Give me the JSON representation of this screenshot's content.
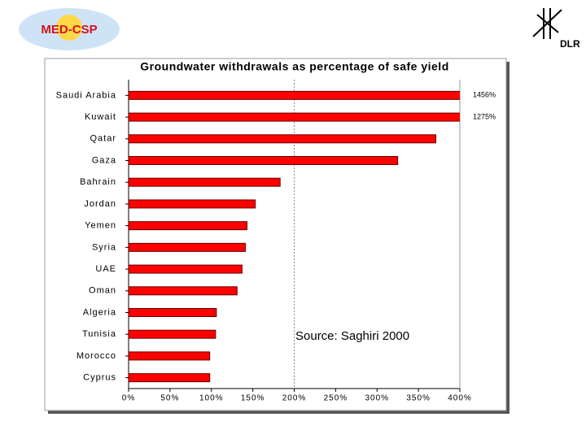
{
  "header": {
    "left_logo": "MED-CSP",
    "right_logo": "DLR"
  },
  "chart_data": {
    "type": "bar",
    "orientation": "horizontal",
    "title": "Groundwater withdrawals as percentage of safe yield",
    "categories": [
      "Saudi Arabia",
      "Kuwait",
      "Qatar",
      "Gaza",
      "Bahrain",
      "Jordan",
      "Yemen",
      "Syria",
      "UAE",
      "Oman",
      "Algeria",
      "Tunisia",
      "Morocco",
      "Cyprus"
    ],
    "values": [
      1456,
      1275,
      371,
      325,
      183,
      153,
      143,
      141,
      137,
      131,
      106,
      105,
      98,
      98
    ],
    "value_labels": [
      "1456%",
      "1275%",
      null,
      null,
      null,
      null,
      null,
      null,
      null,
      null,
      null,
      null,
      null,
      null
    ],
    "color": "#ff0000",
    "xlim": [
      0,
      400
    ],
    "xticks": [
      {
        "value": 0,
        "label": "0%"
      },
      {
        "value": 50,
        "label": "50%"
      },
      {
        "value": 100,
        "label": "100%"
      },
      {
        "value": 150,
        "label": "150%"
      },
      {
        "value": 200,
        "label": "200%"
      },
      {
        "value": 250,
        "label": "250%"
      },
      {
        "value": 300,
        "label": "300%"
      },
      {
        "value": 350,
        "label": "350%"
      },
      {
        "value": 400,
        "label": "400%"
      }
    ],
    "reference_line": 200,
    "annotation": "Source: Saghiri 2000"
  }
}
